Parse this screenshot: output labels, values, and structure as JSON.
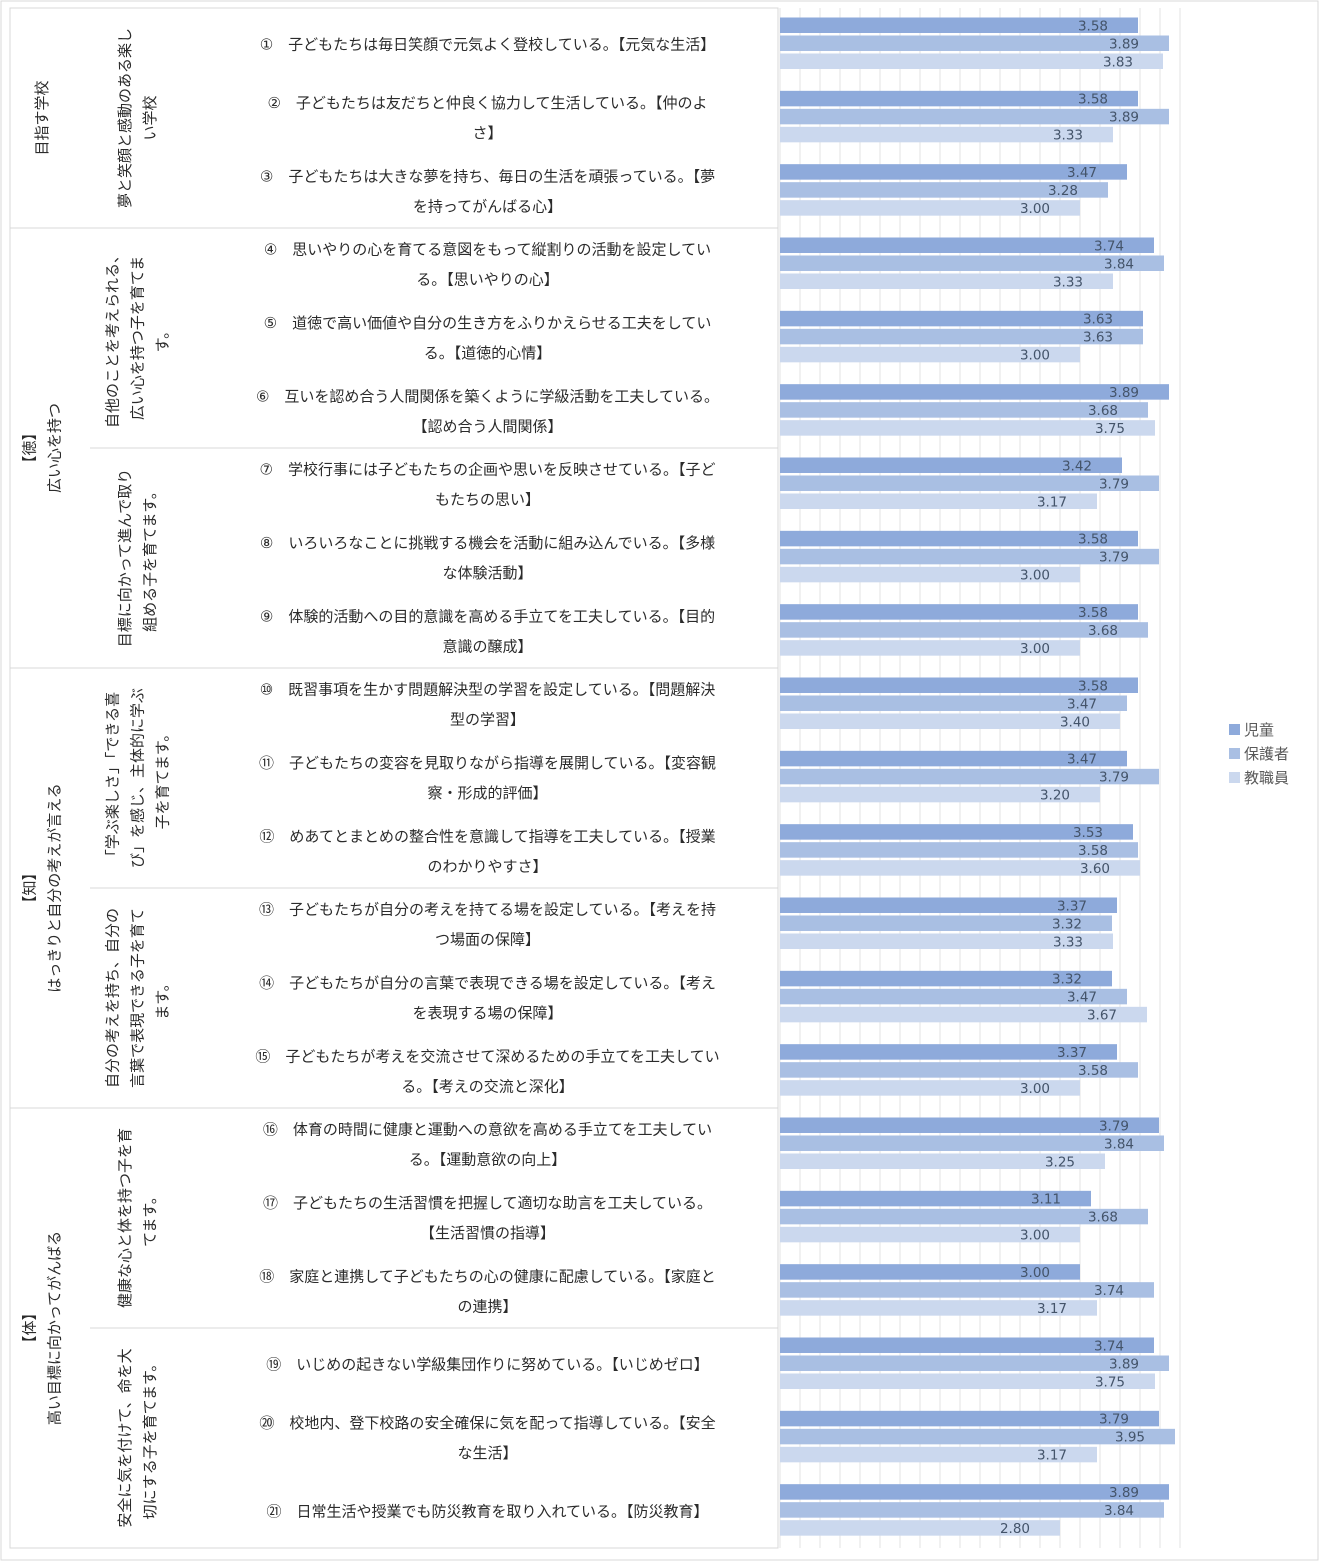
{
  "legend": [
    {
      "name": "児童",
      "color": "#8eaadb"
    },
    {
      "name": "保護者",
      "color": "#a9bfe3"
    },
    {
      "name": "教職員",
      "color": "#cbd8ee"
    }
  ],
  "groups": [
    {
      "label_lines": [
        "目指す学校"
      ],
      "sections": [
        {
          "label_lines": [
            "夢と笑顔と感動のある楽し",
            "い学校"
          ],
          "items": [
            0,
            1,
            2
          ]
        }
      ]
    },
    {
      "label_lines": [
        "【徳】",
        "広い心を持つ"
      ],
      "sections": [
        {
          "label_lines": [
            "自他のことを考えられる、",
            "広い心を持つ子を育てま",
            "す。"
          ],
          "items": [
            3,
            4,
            5
          ]
        },
        {
          "label_lines": [
            "目標に向かって進んで取り",
            "組める子を育てます。"
          ],
          "items": [
            6,
            7,
            8
          ]
        }
      ]
    },
    {
      "label_lines": [
        "【知】",
        "はっきりと自分の考えが言える"
      ],
      "sections": [
        {
          "label_lines": [
            "「学ぶ楽しさ」「できる喜",
            "び」を感じ、主体的に学ぶ",
            "子を育てます。"
          ],
          "items": [
            9,
            10,
            11
          ]
        },
        {
          "label_lines": [
            "自分の考えを持ち、自分の",
            "言葉で表現できる子を育て",
            "ます。"
          ],
          "items": [
            12,
            13,
            14
          ]
        }
      ]
    },
    {
      "label_lines": [
        "【体】",
        "高い目標に向かってがんばる"
      ],
      "sections": [
        {
          "label_lines": [
            "健康な心と体を持つ子を育",
            "てます。"
          ],
          "items": [
            15,
            16,
            17
          ]
        },
        {
          "label_lines": [
            "安全に気を付けて、命を大",
            "切にする子を育てます。"
          ],
          "items": [
            18,
            19,
            20
          ]
        }
      ]
    }
  ],
  "chart_data": {
    "type": "bar",
    "orientation": "horizontal",
    "xlim": [
      0,
      4
    ],
    "grid": true,
    "legend_position": "right",
    "categories": [
      "① 子どもたちは毎日笑顔で元気よく登校している。【元気な生活】",
      "② 子どもたちは友だちと仲良く協力して生活している。【仲のよさ】",
      "③ 子どもたちは大きな夢を持ち、毎日の生活を頑張っている。【夢を持ってがんばる心】",
      "④ 思いやりの心を育てる意図をもって縦割りの活動を設定している。【思いやりの心】",
      "⑤ 道徳で高い価値や自分の生き方をふりかえらせる工夫をしている。【道徳的心情】",
      "⑥ 互いを認め合う人間関係を築くように学級活動を工夫している。【認め合う人間関係】",
      "⑦ 学校行事には子どもたちの企画や思いを反映させている。【子どもたちの思い】",
      "⑧ いろいろなことに挑戦する機会を活動に組み込んでいる。【多様な体験活動】",
      "⑨ 体験的活動への目的意識を高める手立てを工夫している。【目的意識の醸成】",
      "⑩ 既習事項を生かす問題解決型の学習を設定している。【問題解決型の学習】",
      "⑪ 子どもたちの変容を見取りながら指導を展開している。【変容観察・形成的評価】",
      "⑫ めあてとまとめの整合性を意識して指導を工夫している。【授業のわかりやすさ】",
      "⑬ 子どもたちが自分の考えを持てる場を設定している。【考えを持つ場面の保障】",
      "⑭ 子どもたちが自分の言葉で表現できる場を設定している。【考えを表現する場の保障】",
      "⑮ 子どもたちが考えを交流させて深めるための手立てを工夫している。【考えの交流と深化】",
      "⑯ 体育の時間に健康と運動への意欲を高める手立てを工夫している。【運動意欲の向上】",
      "⑰ 子どもたちの生活習慣を把握して適切な助言を工夫している。【生活習慣の指導】",
      "⑱ 家庭と連携して子どもたちの心の健康に配慮している。【家庭との連携】",
      "⑲ いじめの起きない学級集団作りに努めている。【いじめゼロ】",
      "⑳ 校地内、登下校路の安全確保に気を配って指導している。【安全な生活】",
      "㉑ 日常生活や授業でも防災教育を取り入れている。【防災教育】"
    ],
    "category_lines": [
      [
        "①　子どもたちは毎日笑顔で元気よく登校している。【元気な生活】"
      ],
      [
        "②　子どもたちは友だちと仲良く協力して生活している。【仲のよ",
        "さ】"
      ],
      [
        "③　子どもたちは大きな夢を持ち、毎日の生活を頑張っている。【夢",
        "を持ってがんばる心】"
      ],
      [
        "④　思いやりの心を育てる意図をもって縦割りの活動を設定してい",
        "る。【思いやりの心】"
      ],
      [
        "⑤　道徳で高い価値や自分の生き方をふりかえらせる工夫をしてい",
        "る。【道徳的心情】"
      ],
      [
        "⑥　互いを認め合う人間関係を築くように学級活動を工夫している。",
        "【認め合う人間関係】"
      ],
      [
        "⑦　学校行事には子どもたちの企画や思いを反映させている。【子ど",
        "もたちの思い】"
      ],
      [
        "⑧　いろいろなことに挑戦する機会を活動に組み込んでいる。【多様",
        "な体験活動】"
      ],
      [
        "⑨　体験的活動への目的意識を高める手立てを工夫している。【目的",
        "意識の醸成】"
      ],
      [
        "⑩　既習事項を生かす問題解決型の学習を設定している。【問題解決",
        "型の学習】"
      ],
      [
        "⑪　子どもたちの変容を見取りながら指導を展開している。【変容観",
        "察・形成的評価】"
      ],
      [
        "⑫　めあてとまとめの整合性を意識して指導を工夫している。【授業",
        "のわかりやすさ】"
      ],
      [
        "⑬　子どもたちが自分の考えを持てる場を設定している。【考えを持",
        "つ場面の保障】"
      ],
      [
        "⑭　子どもたちが自分の言葉で表現できる場を設定している。【考え",
        "を表現する場の保障】"
      ],
      [
        "⑮　子どもたちが考えを交流させて深めるための手立てを工夫してい",
        "る。【考えの交流と深化】"
      ],
      [
        "⑯　体育の時間に健康と運動への意欲を高める手立てを工夫してい",
        "る。【運動意欲の向上】"
      ],
      [
        "⑰　子どもたちの生活習慣を把握して適切な助言を工夫している。",
        "【生活習慣の指導】"
      ],
      [
        "⑱　家庭と連携して子どもたちの心の健康に配慮している。【家庭と",
        "の連携】"
      ],
      [
        "⑲　いじめの起きない学級集団作りに努めている。【いじめゼロ】"
      ],
      [
        "⑳　校地内、登下校路の安全確保に気を配って指導している。【安全",
        "な生活】"
      ],
      [
        "㉑　日常生活や授業でも防災教育を取り入れている。【防災教育】"
      ]
    ],
    "series": [
      {
        "name": "児童",
        "values": [
          3.58,
          3.58,
          3.47,
          3.74,
          3.63,
          3.89,
          3.42,
          3.58,
          3.58,
          3.58,
          3.47,
          3.53,
          3.37,
          3.32,
          3.37,
          3.79,
          3.11,
          3.0,
          3.74,
          3.79,
          3.89
        ]
      },
      {
        "name": "保護者",
        "values": [
          3.89,
          3.89,
          3.28,
          3.84,
          3.63,
          3.68,
          3.79,
          3.79,
          3.68,
          3.47,
          3.79,
          3.58,
          3.32,
          3.47,
          3.58,
          3.84,
          3.68,
          3.74,
          3.89,
          3.95,
          3.84
        ]
      },
      {
        "name": "教職員",
        "values": [
          3.83,
          3.33,
          3.0,
          3.33,
          3.0,
          3.75,
          3.17,
          3.0,
          3.0,
          3.4,
          3.2,
          3.6,
          3.33,
          3.67,
          3.0,
          3.25,
          3.0,
          3.17,
          3.75,
          3.17,
          2.8
        ]
      }
    ]
  }
}
